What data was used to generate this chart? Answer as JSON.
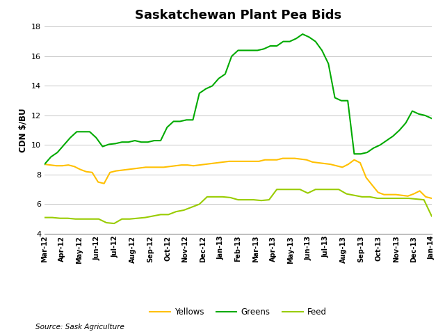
{
  "title": "Saskatchewan Plant Pea Bids",
  "ylabel": "CDN $/BU",
  "source": "Source: Sask Agriculture",
  "ylim": [
    4,
    18
  ],
  "yticks": [
    4,
    6,
    8,
    10,
    12,
    14,
    16,
    18
  ],
  "colors": {
    "yellows": "#FFC000",
    "greens": "#00AA00",
    "feed": "#99CC00"
  },
  "x_labels": [
    "Mar-12",
    "Apr-12",
    "May-12",
    "Jun-12",
    "Jul-12",
    "Aug-12",
    "Sep-12",
    "Oct-12",
    "Nov-12",
    "Dec-12",
    "Jan-13",
    "Feb-13",
    "Mar-13",
    "Apr-13",
    "May-13",
    "Jun-13",
    "Jul-13",
    "Aug-13",
    "Sep-13",
    "Oct-13",
    "Nov-13",
    "Dec-13",
    "Jan-14"
  ],
  "yellows": [
    8.7,
    8.65,
    8.6,
    8.6,
    8.65,
    8.55,
    8.35,
    8.2,
    8.15,
    7.5,
    7.4,
    8.15,
    8.25,
    8.3,
    8.35,
    8.4,
    8.45,
    8.5,
    8.5,
    8.5,
    8.5,
    8.55,
    8.6,
    8.65,
    8.65,
    8.6,
    8.65,
    8.7,
    8.75,
    8.8,
    8.85,
    8.9,
    8.9,
    8.9,
    8.9,
    8.9,
    8.9,
    9.0,
    9.0,
    9.0,
    9.1,
    9.1,
    9.1,
    9.05,
    9.0,
    8.85,
    8.8,
    8.75,
    8.7,
    8.6,
    8.5,
    8.7,
    9.0,
    8.8,
    7.8,
    7.3,
    6.8,
    6.65,
    6.65,
    6.65,
    6.6,
    6.55,
    6.7,
    6.9,
    6.5,
    6.4
  ],
  "greens": [
    8.7,
    9.2,
    9.5,
    10.0,
    10.5,
    10.9,
    10.9,
    10.9,
    10.5,
    9.9,
    10.05,
    10.1,
    10.2,
    10.2,
    10.3,
    10.2,
    10.2,
    10.3,
    10.3,
    11.2,
    11.6,
    11.6,
    11.7,
    11.7,
    13.5,
    13.8,
    14.0,
    14.5,
    14.8,
    16.0,
    16.4,
    16.4,
    16.4,
    16.4,
    16.5,
    16.7,
    16.7,
    17.0,
    17.0,
    17.2,
    17.5,
    17.3,
    17.0,
    16.4,
    15.5,
    13.2,
    13.0,
    13.0,
    9.4,
    9.4,
    9.5,
    9.8,
    10.0,
    10.3,
    10.6,
    11.0,
    11.5,
    12.3,
    12.1,
    12.0,
    11.8
  ],
  "feed": [
    5.1,
    5.1,
    5.05,
    5.05,
    5.0,
    5.0,
    5.0,
    5.0,
    4.75,
    4.7,
    5.0,
    5.0,
    5.05,
    5.1,
    5.2,
    5.3,
    5.3,
    5.5,
    5.6,
    5.8,
    6.0,
    6.5,
    6.5,
    6.5,
    6.45,
    6.3,
    6.3,
    6.3,
    6.25,
    6.3,
    7.0,
    7.0,
    7.0,
    7.0,
    6.75,
    7.0,
    7.0,
    7.0,
    7.0,
    6.7,
    6.6,
    6.5,
    6.5,
    6.4,
    6.4,
    6.4,
    6.4,
    6.4,
    6.35,
    6.3,
    5.2
  ]
}
